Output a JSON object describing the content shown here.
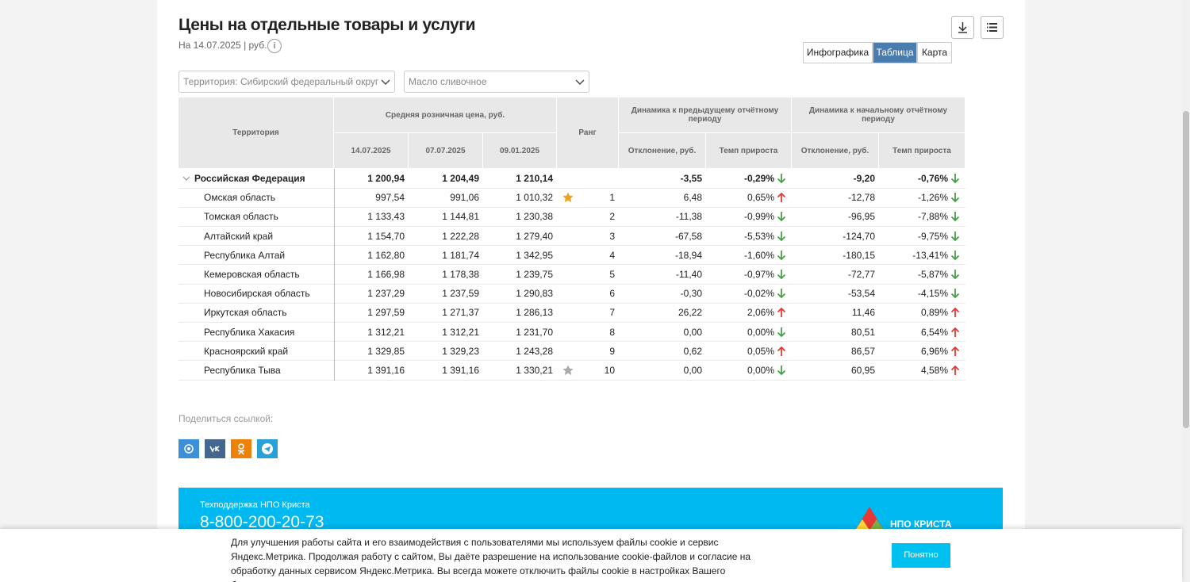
{
  "header": {
    "title": "Цены на отдельные товары и услуги",
    "subtitle": "На 14.07.2025 | руб.",
    "info": "i"
  },
  "tabs": {
    "items": [
      "Инфографика",
      "Таблица",
      "Карта"
    ],
    "active": 1
  },
  "filters": [
    "Территория: Сибирский федеральный округ",
    "Масло сливочное"
  ],
  "table": {
    "headers": {
      "territory": "Территория",
      "avg_price": "Средняя розничная цена, руб.",
      "dates": [
        "14.07.2025",
        "07.07.2025",
        "09.01.2025"
      ],
      "rank": "Ранг",
      "prev": "Динамика к предыдущему отчётному периоду",
      "start": "Динамика к начальному отчётному периоду",
      "sub": [
        "Отклонение, руб.",
        "Темп прироста",
        "Отклонение, руб.",
        "Темп прироста"
      ]
    },
    "rows": [
      {
        "name": "Российская Федерация",
        "prices": [
          "1 200,94",
          "1 204,49",
          "1 210,14"
        ],
        "prev": [
          "-3,55",
          "-0,29%"
        ],
        "start": [
          "-9,20",
          "-0,76%"
        ],
        "arrows": [
          "down",
          "down"
        ]
      },
      {
        "name": "Омская область",
        "prices": [
          "997,54",
          "991,06",
          "1 010,32"
        ],
        "star": "#f0a21d",
        "rank": "1",
        "prev": [
          "6,48",
          "0,65%"
        ],
        "start": [
          "-12,78",
          "-1,26%"
        ],
        "arrows": [
          "up",
          "down"
        ]
      },
      {
        "name": "Томская область",
        "prices": [
          "1 133,43",
          "1 144,81",
          "1 230,38"
        ],
        "rank": "2",
        "prev": [
          "-11,38",
          "-0,99%"
        ],
        "start": [
          "-96,95",
          "-7,88%"
        ],
        "arrows": [
          "down",
          "down"
        ]
      },
      {
        "name": "Алтайский край",
        "prices": [
          "1 154,70",
          "1 222,28",
          "1 279,40"
        ],
        "rank": "3",
        "prev": [
          "-67,58",
          "-5,53%"
        ],
        "start": [
          "-124,70",
          "-9,75%"
        ],
        "arrows": [
          "down",
          "down"
        ]
      },
      {
        "name": "Республика Алтай",
        "prices": [
          "1 162,80",
          "1 181,74",
          "1 342,95"
        ],
        "rank": "4",
        "prev": [
          "-18,94",
          "-1,60%"
        ],
        "start": [
          "-180,15",
          "-13,41%"
        ],
        "arrows": [
          "down",
          "down"
        ]
      },
      {
        "name": "Кемеровская область",
        "prices": [
          "1 166,98",
          "1 178,38",
          "1 239,75"
        ],
        "rank": "5",
        "prev": [
          "-11,40",
          "-0,97%"
        ],
        "start": [
          "-72,77",
          "-5,87%"
        ],
        "arrows": [
          "down",
          "down"
        ]
      },
      {
        "name": "Новосибирская область",
        "prices": [
          "1 237,29",
          "1 237,59",
          "1 290,83"
        ],
        "rank": "6",
        "prev": [
          "-0,30",
          "-0,02%"
        ],
        "start": [
          "-53,54",
          "-4,15%"
        ],
        "arrows": [
          "down",
          "down"
        ]
      },
      {
        "name": "Иркутская область",
        "prices": [
          "1 297,59",
          "1 271,37",
          "1 286,13"
        ],
        "rank": "7",
        "prev": [
          "26,22",
          "2,06%"
        ],
        "start": [
          "11,46",
          "0,89%"
        ],
        "arrows": [
          "up",
          "up"
        ]
      },
      {
        "name": "Республика Хакасия",
        "prices": [
          "1 312,21",
          "1 312,21",
          "1 231,70"
        ],
        "rank": "8",
        "prev": [
          "0,00",
          "0,00%"
        ],
        "start": [
          "80,51",
          "6,54%"
        ],
        "arrows": [
          "down",
          "up"
        ]
      },
      {
        "name": "Красноярский край",
        "prices": [
          "1 329,85",
          "1 329,23",
          "1 243,28"
        ],
        "rank": "9",
        "prev": [
          "0,62",
          "0,05%"
        ],
        "start": [
          "86,57",
          "6,96%"
        ],
        "arrows": [
          "up",
          "up"
        ]
      },
      {
        "name": "Республика Тыва",
        "prices": [
          "1 391,16",
          "1 391,16",
          "1 330,21"
        ],
        "star": "#aaaaaa",
        "rank": "10",
        "prev": [
          "0,00",
          "0,00%"
        ],
        "start": [
          "60,95",
          "4,58%"
        ],
        "arrows": [
          "down",
          "up"
        ]
      }
    ]
  },
  "share": {
    "label": "Поделиться ссылкой:"
  },
  "footer": {
    "support": "Техподдержка НПО Криста",
    "phone": "8-800-200-20-73",
    "logo": "НПО КРИСТА"
  },
  "cookie": {
    "text": "Для улучшения работы сайта и его взаимодействия с пользователями мы используем файлы cookie и сервис Яндекс.Метрика. Продолжая работу с сайтом, Вы даёте разрешение на использование cookie-файлов и согласие на обработку данных сервисом Яндекс.Метрика. Вы всегда можете отключить файлы cookie в настройках Вашего браузера.",
    "button": "Понятно"
  }
}
